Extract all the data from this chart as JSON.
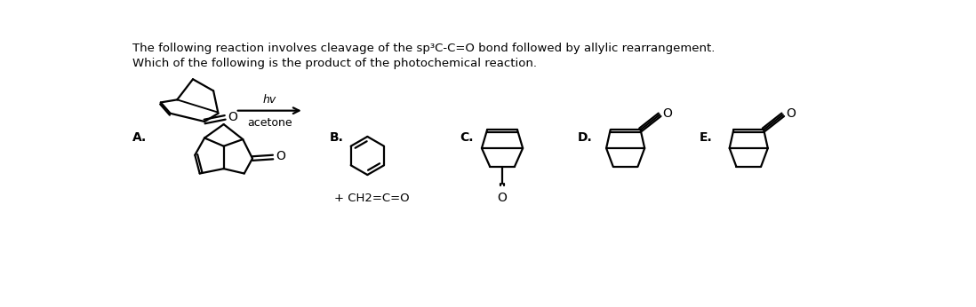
{
  "title_line1": "The following reaction involves cleavage of the sp³C-C=O bond followed by allylic rearrangement.",
  "title_line2": "Which of the following is the product of the photochemical reaction.",
  "hv_label": "hv",
  "acetone_label": "acetone",
  "option_labels": [
    "A.",
    "B.",
    "C.",
    "D.",
    "E."
  ],
  "option_b_extra": "+ CH2=C=O",
  "bg_color": "#ffffff",
  "line_color": "#000000",
  "text_color": "#000000",
  "lw": 1.6,
  "figsize": [
    10.98,
    3.46
  ],
  "dpi": 100
}
